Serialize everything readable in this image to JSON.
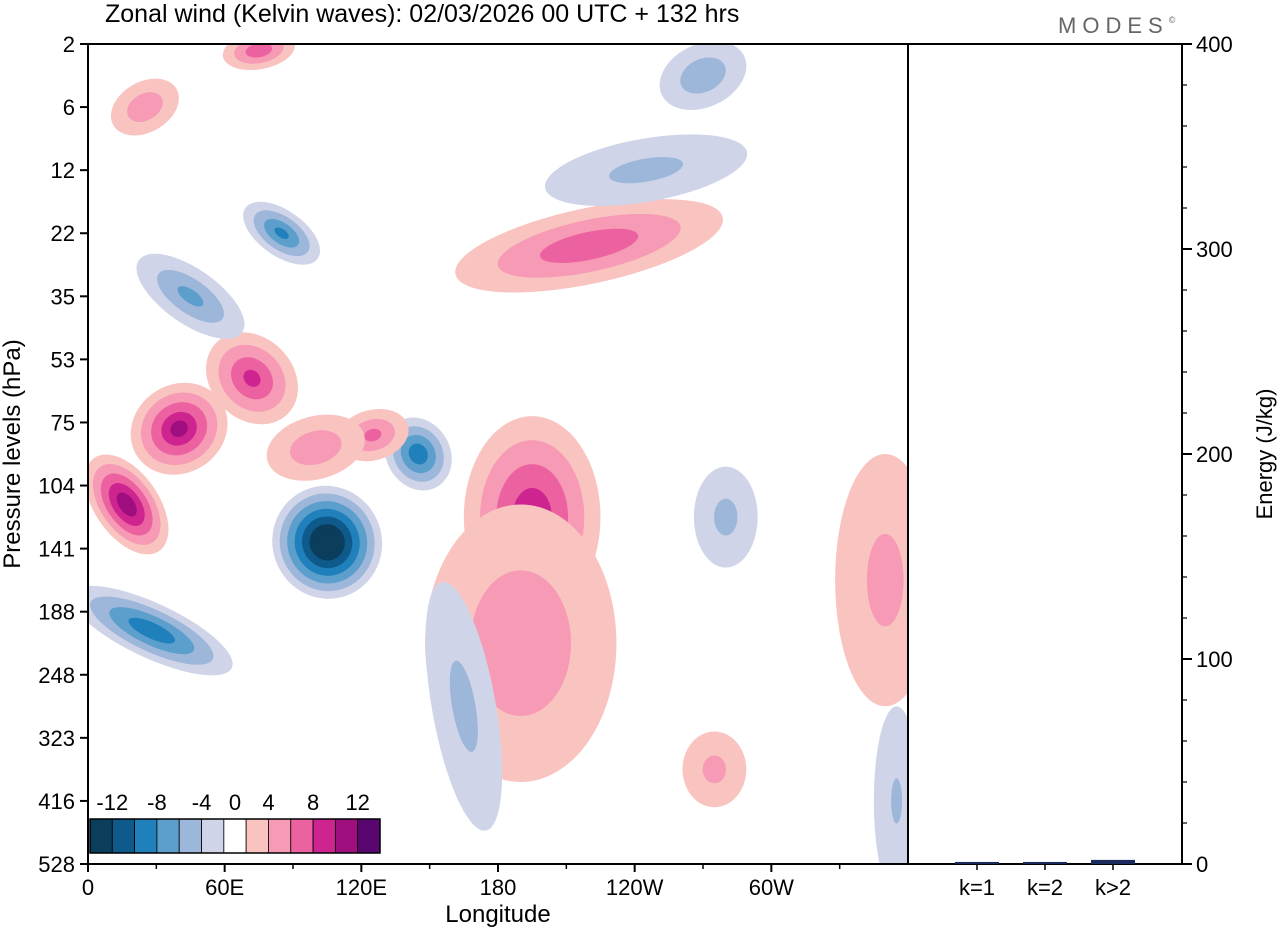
{
  "header": {
    "title": "Zonal wind (Kelvin waves):  02/03/2026  00 UTC  + 132 hrs",
    "brand": "MODES",
    "brand_mark": "©"
  },
  "chart_data": [
    {
      "type": "heatmap",
      "title": "Zonal wind (Kelvin waves):  02/03/2026  00 UTC  + 132 hrs",
      "xlabel": "Longitude",
      "ylabel": "Pressure levels (hPa)",
      "x_ticks": [
        "0",
        "60E",
        "120E",
        "180",
        "120W",
        "60W"
      ],
      "x_tick_values": [
        0,
        60,
        120,
        180,
        240,
        300
      ],
      "xlim": [
        0,
        360
      ],
      "y_ticks": [
        "2",
        "6",
        "12",
        "22",
        "35",
        "53",
        "75",
        "104",
        "141",
        "188",
        "248",
        "323",
        "416",
        "528"
      ],
      "colorbar": {
        "labels": [
          "-12",
          "-8",
          "-4",
          "0",
          "4",
          "8",
          "12"
        ],
        "levels": [
          -14,
          -12,
          -10,
          -8,
          -6,
          -4,
          -2,
          2,
          4,
          6,
          8,
          10,
          12,
          14
        ],
        "colors": [
          "#0b3d5c",
          "#0e5a8a",
          "#2080bb",
          "#5c9fcc",
          "#9db7da",
          "#d0d4e8",
          "#ffffff",
          "#f9c4c0",
          "#f69ab5",
          "#ec62a0",
          "#cd2490",
          "#9e0e7e",
          "#5a0670"
        ]
      },
      "blobs": [
        {
          "lon": 17,
          "p_index": 7.3,
          "value": 10,
          "w_lon": 14,
          "w_p": 0.9,
          "rot": -35
        },
        {
          "lon": 40,
          "p_index": 6.1,
          "value": 9,
          "w_lon": 22,
          "w_p": 0.7,
          "rot": -33
        },
        {
          "lon": 72,
          "p_index": 5.3,
          "value": 7,
          "w_lon": 18,
          "w_p": 0.8,
          "rot": -45
        },
        {
          "lon": 28,
          "p_index": 9.3,
          "value": -8,
          "w_lon": 12,
          "w_p": 1.4,
          "rot": -65
        },
        {
          "lon": 45,
          "p_index": 4.0,
          "value": -5,
          "w_lon": 12,
          "w_p": 1.0,
          "rot": -55
        },
        {
          "lon": 85,
          "p_index": 3.0,
          "value": -7,
          "w_lon": 10,
          "w_p": 0.7,
          "rot": -55
        },
        {
          "lon": 105,
          "p_index": 7.9,
          "value": -14,
          "w_lon": 24,
          "w_p": 0.9,
          "rot": -20
        },
        {
          "lon": 145,
          "p_index": 6.5,
          "value": -8,
          "w_lon": 14,
          "w_p": 0.6,
          "rot": -30
        },
        {
          "lon": 195,
          "p_index": 7.5,
          "value": 8,
          "w_lon": 30,
          "w_p": 1.6,
          "rot": 0
        },
        {
          "lon": 190,
          "p_index": 9.5,
          "value": 4,
          "w_lon": 42,
          "w_p": 2.2,
          "rot": 0
        },
        {
          "lon": 220,
          "p_index": 3.2,
          "value": 6,
          "w_lon": 60,
          "w_p": 0.6,
          "rot": -12
        },
        {
          "lon": 125,
          "p_index": 6.2,
          "value": 5,
          "w_lon": 16,
          "w_p": 0.4,
          "rot": -15
        },
        {
          "lon": 350,
          "p_index": 8.5,
          "value": 3,
          "w_lon": 22,
          "w_p": 2.0,
          "rot": 0
        },
        {
          "lon": 275,
          "p_index": 11.5,
          "value": 3,
          "w_lon": 14,
          "w_p": 0.6,
          "rot": 0
        },
        {
          "lon": 245,
          "p_index": 2.0,
          "value": -3,
          "w_lon": 45,
          "w_p": 0.5,
          "rot": -10
        },
        {
          "lon": 270,
          "p_index": 0.5,
          "value": -4,
          "w_lon": 20,
          "w_p": 0.5,
          "rot": -25
        },
        {
          "lon": 75,
          "p_index": 0.1,
          "value": 6,
          "w_lon": 16,
          "w_p": 0.3,
          "rot": -10
        },
        {
          "lon": 25,
          "p_index": 1.0,
          "value": 4,
          "w_lon": 16,
          "w_p": 0.4,
          "rot": -30
        },
        {
          "lon": 165,
          "p_index": 10.5,
          "value": -3,
          "w_lon": 14,
          "w_p": 2.0,
          "rot": -10
        },
        {
          "lon": 355,
          "p_index": 12.0,
          "value": -2.5,
          "w_lon": 10,
          "w_p": 1.5,
          "rot": 0
        },
        {
          "lon": 280,
          "p_index": 7.5,
          "value": -3,
          "w_lon": 14,
          "w_p": 0.8,
          "rot": 0
        },
        {
          "lon": 100,
          "p_index": 6.4,
          "value": 4,
          "w_lon": 22,
          "w_p": 0.5,
          "rot": -15
        }
      ]
    },
    {
      "type": "bar",
      "ylabel": "Energy (J/kg)",
      "categories": [
        "k=1",
        "k=2",
        "k>2"
      ],
      "values": [
        1,
        1,
        2
      ],
      "ylim": [
        0,
        400
      ],
      "y_ticks": [
        "0",
        "100",
        "200",
        "300",
        "400"
      ],
      "y_tick_values": [
        0,
        100,
        200,
        300,
        400
      ]
    }
  ]
}
